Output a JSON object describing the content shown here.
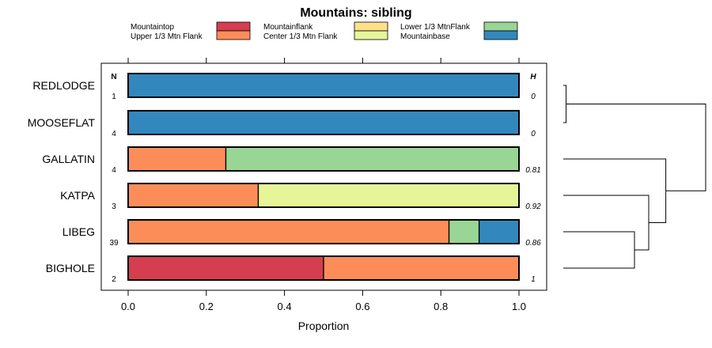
{
  "chart_data": {
    "type": "bar",
    "orientation": "horizontal",
    "stacked": true,
    "title": "Mountains: sibling",
    "xlabel": "Proportion",
    "ylabel": "",
    "xlim": [
      0,
      1
    ],
    "x_ticks": [
      "0.0",
      "0.2",
      "0.4",
      "0.6",
      "0.8",
      "1.0"
    ],
    "legend_position": "top",
    "column_headers": {
      "n": "N",
      "h": "H"
    },
    "series": [
      {
        "name": "Mountaintop",
        "color": "#d53e4f"
      },
      {
        "name": "Upper 1/3 Mtn Flank",
        "color": "#fc8d59"
      },
      {
        "name": "Mountainflank",
        "color": "#fee08b"
      },
      {
        "name": "Center 1/3 Mtn Flank",
        "color": "#e6f598"
      },
      {
        "name": "Lower 1/3 MtnFlank",
        "color": "#99d594"
      },
      {
        "name": "Mountainbase",
        "color": "#3288bd"
      }
    ],
    "categories": [
      "REDLODGE",
      "MOOSEFLAT",
      "GALLATIN",
      "KATPA",
      "LIBEG",
      "BIGHOLE"
    ],
    "rows": [
      {
        "label": "REDLODGE",
        "n": "1",
        "h": "0",
        "values": [
          0,
          0,
          0,
          0,
          0,
          1
        ]
      },
      {
        "label": "MOOSEFLAT",
        "n": "4",
        "h": "0",
        "values": [
          0,
          0,
          0,
          0,
          0,
          1
        ]
      },
      {
        "label": "GALLATIN",
        "n": "4",
        "h": "0.81",
        "values": [
          0,
          0.25,
          0,
          0,
          0.75,
          0
        ]
      },
      {
        "label": "KATPA",
        "n": "3",
        "h": "0.92",
        "values": [
          0,
          0.333,
          0,
          0.667,
          0,
          0
        ]
      },
      {
        "label": "LIBEG",
        "n": "39",
        "h": "0.86",
        "values": [
          0,
          0.821,
          0,
          0,
          0.077,
          0.102
        ]
      },
      {
        "label": "BIGHOLE",
        "n": "2",
        "h": "1",
        "values": [
          0.5,
          0.5,
          0,
          0,
          0,
          0
        ]
      }
    ],
    "dendrogram": [
      {
        "left": "REDLODGE",
        "right": "MOOSEFLAT",
        "height": 0.02
      },
      {
        "left": "LIBEG",
        "right": "BIGHOLE",
        "height": 0.5
      },
      {
        "left": "KATPA",
        "right": "LIBEG+BIGHOLE",
        "height": 0.6
      },
      {
        "left": "GALLATIN",
        "right": "KATPA+LIBEG+BIGHOLE",
        "height": 0.72
      },
      {
        "left": "REDLODGE+MOOSEFLAT",
        "right": "GALLATIN+KATPA+LIBEG+BIGHOLE",
        "height": 1.0
      }
    ]
  }
}
